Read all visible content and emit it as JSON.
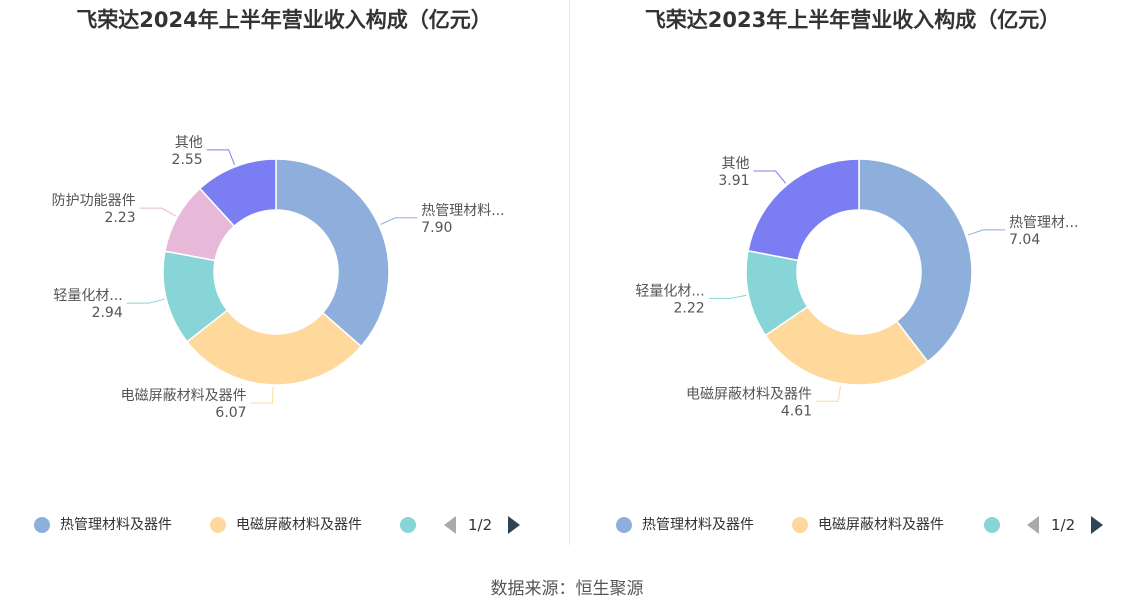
{
  "source": "数据来源：恒生聚源",
  "charts": [
    {
      "title": "飞荣达2024年上半年营业收入构成（亿元）",
      "legend_visible": [
        "热管理材料及器件",
        "电磁屏蔽材料及器件"
      ],
      "pager": "1/2"
    },
    {
      "title": "飞荣达2023年上半年营业收入构成（亿元）",
      "legend_visible": [
        "热管理材料及器件",
        "电磁屏蔽材料及器件"
      ],
      "pager": "1/2"
    }
  ],
  "chart_data": [
    {
      "type": "pie",
      "title": "飞荣达2024年上半年营业收入构成（亿元）",
      "donut": true,
      "legend_position": "bottom",
      "slices": [
        {
          "name": "热管理材料及器件",
          "label": "热管理材料...",
          "value": 7.9,
          "display": "7.90",
          "color": "#8eaedb"
        },
        {
          "name": "电磁屏蔽材料及器件",
          "label": "电磁屏蔽材料及器件",
          "value": 6.07,
          "display": "6.07",
          "color": "#ffd89b"
        },
        {
          "name": "轻量化材料",
          "label": "轻量化材...",
          "value": 2.94,
          "display": "2.94",
          "color": "#88d5d8"
        },
        {
          "name": "防护功能器件",
          "label": "防护功能器件",
          "value": 2.23,
          "display": "2.23",
          "color": "#e7b8d8"
        },
        {
          "name": "其他",
          "label": "其他",
          "value": 2.55,
          "display": "2.55",
          "color": "#7b7ef2"
        }
      ]
    },
    {
      "type": "pie",
      "title": "飞荣达2023年上半年营业收入构成（亿元）",
      "donut": true,
      "legend_position": "bottom",
      "slices": [
        {
          "name": "热管理材料及器件",
          "label": "热管理材...",
          "value": 7.04,
          "display": "7.04",
          "color": "#8eaedb"
        },
        {
          "name": "电磁屏蔽材料及器件",
          "label": "电磁屏蔽材料及器件",
          "value": 4.61,
          "display": "4.61",
          "color": "#ffd89b"
        },
        {
          "name": "轻量化材料",
          "label": "轻量化材...",
          "value": 2.22,
          "display": "2.22",
          "color": "#88d5d8"
        },
        {
          "name": "其他",
          "label": "其他",
          "value": 3.91,
          "display": "3.91",
          "color": "#7b7ef2"
        }
      ]
    }
  ]
}
